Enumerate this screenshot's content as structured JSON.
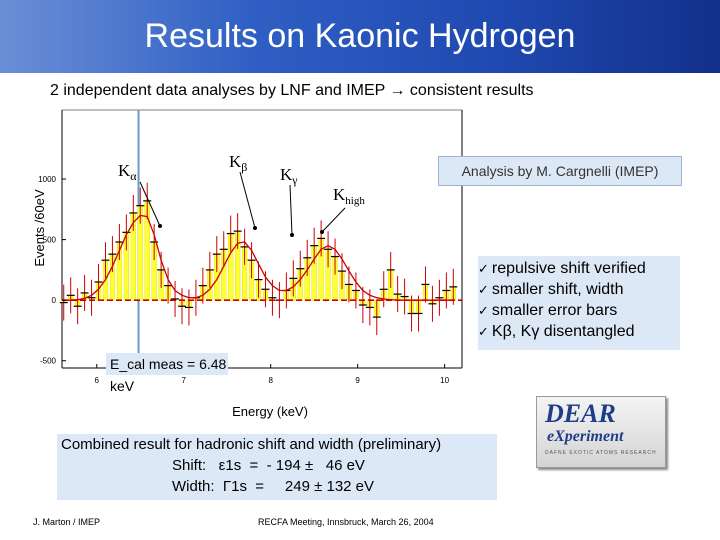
{
  "slide": {
    "title": "Results on Kaonic Hydrogen",
    "subtitle": "2 independent data analyses by LNF and IMEP → consistent results",
    "analysis_label": "Analysis by M. Cargnelli (IMEP)",
    "bullets": [
      "repulsive shift verified",
      "smaller shift, width",
      "smaller error bars",
      "Kβ, Kγ disentangled"
    ],
    "bullet_mark": "✓",
    "ecal": "E_cal meas = 6.48 keV",
    "combined": {
      "heading": "Combined result for hadronic shift and width (preliminary)",
      "shift": "Shift:   ε1s  =  - 194 ±   46 eV",
      "width": "Width:  Γ1s  =     249 ± 132 eV"
    },
    "footer_left": "J. Marton / IMEP",
    "footer_center": "RECFA Meeting, Innsbruck, March 26, 2004",
    "logo": {
      "line1": "DEAR",
      "line2": "eXperiment",
      "tagline": "DAFNE EXOTIC ATOMS RESEARCH"
    },
    "colors": {
      "title_bar": "#2f5fc4",
      "box": "#dde8f6",
      "fill": "#ffff33",
      "data": "#cc0000",
      "ecal_line": "#6699cc"
    }
  },
  "chart_data": {
    "type": "bar",
    "xlabel": "Energy (keV)",
    "ylabel": "Events /60eV",
    "x_ticks": [
      "6",
      "7",
      "8",
      "9",
      "10"
    ],
    "y_ticks": [
      "1000",
      "500",
      "0",
      "-500"
    ],
    "xlim": [
      5.6,
      10.2
    ],
    "ylim": [
      -560,
      1570
    ],
    "peaks": [
      "Kα",
      "Kβ",
      "Kγ",
      "Khigh"
    ],
    "ecal_keV": 6.48,
    "ecal_label": "E_cal meas = 6.48 keV",
    "x": [
      5.62,
      5.7,
      5.78,
      5.86,
      5.94,
      6.02,
      6.1,
      6.18,
      6.26,
      6.34,
      6.42,
      6.5,
      6.58,
      6.66,
      6.74,
      6.82,
      6.9,
      6.98,
      7.06,
      7.14,
      7.22,
      7.3,
      7.38,
      7.46,
      7.54,
      7.62,
      7.7,
      7.78,
      7.86,
      7.94,
      8.02,
      8.1,
      8.18,
      8.26,
      8.34,
      8.42,
      8.5,
      8.58,
      8.66,
      8.74,
      8.82,
      8.9,
      8.98,
      9.06,
      9.14,
      9.22,
      9.3,
      9.38,
      9.46,
      9.54,
      9.62,
      9.7,
      9.78,
      9.86,
      9.94,
      10.02,
      10.1
    ],
    "values": [
      -20,
      40,
      -50,
      60,
      20,
      150,
      330,
      380,
      480,
      560,
      720,
      780,
      820,
      480,
      250,
      120,
      10,
      -50,
      -60,
      20,
      120,
      250,
      380,
      420,
      550,
      570,
      440,
      330,
      170,
      90,
      20,
      0,
      80,
      180,
      260,
      350,
      450,
      510,
      420,
      360,
      240,
      130,
      80,
      -40,
      -60,
      -140,
      90,
      250,
      50,
      30,
      -110,
      -110,
      130,
      -30,
      20,
      80,
      110
    ],
    "fit": [
      0,
      0,
      5,
      15,
      40,
      90,
      170,
      280,
      410,
      540,
      640,
      700,
      690,
      540,
      330,
      170,
      80,
      40,
      20,
      20,
      40,
      90,
      170,
      280,
      390,
      470,
      480,
      410,
      300,
      190,
      120,
      80,
      80,
      110,
      170,
      250,
      340,
      420,
      450,
      420,
      340,
      240,
      150,
      80,
      40,
      20,
      10,
      5,
      0,
      0,
      0,
      0,
      0,
      0,
      0,
      0,
      0
    ]
  }
}
